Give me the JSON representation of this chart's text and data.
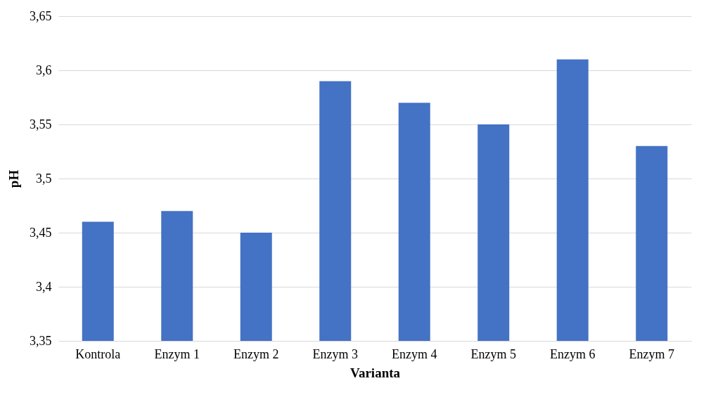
{
  "chart_data": {
    "type": "bar",
    "xlabel": "Varianta",
    "ylabel": "pH",
    "categories": [
      "Kontrola",
      "Enzym 1",
      "Enzym 2",
      "Enzym 3",
      "Enzym 4",
      "Enzym 5",
      "Enzym 6",
      "Enzym 7"
    ],
    "values": [
      3.46,
      3.47,
      3.45,
      3.59,
      3.57,
      3.55,
      3.61,
      3.53
    ],
    "colors": [
      "#4472c4",
      "#4472c4",
      "#4472c4",
      "#4472c4",
      "#4472c4",
      "#4472c4",
      "#4472c4",
      "#4472c4"
    ],
    "ylim": [
      3.35,
      3.65
    ],
    "yticks": [
      {
        "value": 3.35,
        "label": "3,35"
      },
      {
        "value": 3.4,
        "label": "3,4"
      },
      {
        "value": 3.45,
        "label": "3,45"
      },
      {
        "value": 3.5,
        "label": "3,5"
      },
      {
        "value": 3.55,
        "label": "3,55"
      },
      {
        "value": 3.6,
        "label": "3,6"
      },
      {
        "value": 3.65,
        "label": "3,65"
      }
    ],
    "grid": "y"
  }
}
